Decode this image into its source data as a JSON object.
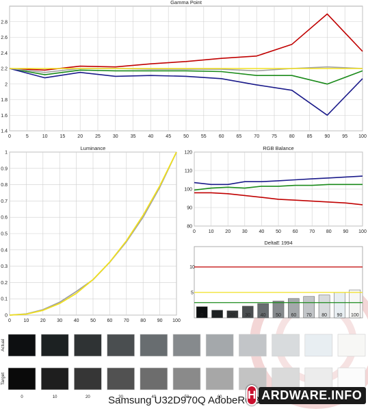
{
  "caption": "Samsung U32D970Q AdobeRGB",
  "logo": {
    "badge": "H",
    "text": "ARDWARE.INFO"
  },
  "colors": {
    "red": "#c00000",
    "green": "#1a8a1a",
    "blue": "#1a1a8a",
    "gray": "#a0a0a0",
    "yellow": "#f0e020"
  },
  "chart_data": [
    {
      "type": "line",
      "title": "Gamma Point",
      "x": [
        0,
        10,
        20,
        30,
        40,
        50,
        60,
        70,
        80,
        90,
        100
      ],
      "xticks": [
        0,
        5,
        10,
        15,
        20,
        25,
        30,
        35,
        40,
        45,
        50,
        55,
        60,
        65,
        70,
        75,
        80,
        85,
        90,
        95,
        100
      ],
      "xlim": [
        0,
        100
      ],
      "ylim": [
        1.4,
        3.0
      ],
      "yticks": [
        1.4,
        1.6,
        1.8,
        2,
        2.2,
        2.4,
        2.6,
        2.8
      ],
      "grid": true,
      "series": [
        {
          "color": "red",
          "values": [
            2.2,
            2.18,
            2.23,
            2.22,
            2.26,
            2.29,
            2.33,
            2.36,
            2.51,
            2.9,
            2.42
          ]
        },
        {
          "color": "green",
          "values": [
            2.2,
            2.12,
            2.18,
            2.17,
            2.17,
            2.17,
            2.16,
            2.11,
            2.11,
            2.0,
            2.17
          ]
        },
        {
          "color": "blue",
          "values": [
            2.2,
            2.08,
            2.15,
            2.1,
            2.11,
            2.1,
            2.07,
            1.99,
            1.92,
            1.6,
            2.07
          ]
        },
        {
          "color": "gray",
          "values": [
            2.2,
            2.15,
            2.2,
            2.2,
            2.19,
            2.19,
            2.19,
            2.17,
            2.2,
            2.22,
            2.2
          ]
        },
        {
          "color": "yellow",
          "values": [
            2.2,
            2.2,
            2.2,
            2.2,
            2.2,
            2.2,
            2.2,
            2.2,
            2.2,
            2.2,
            2.2
          ]
        }
      ]
    },
    {
      "type": "line",
      "title": "Luminance",
      "x": [
        0,
        10,
        20,
        30,
        40,
        50,
        60,
        70,
        80,
        90,
        100
      ],
      "xlim": [
        0,
        100
      ],
      "ylim": [
        0,
        1
      ],
      "yticks": [
        0,
        0.1,
        0.2,
        0.3,
        0.4,
        0.5,
        0.6,
        0.7,
        0.8,
        0.9,
        1
      ],
      "grid": true,
      "series": [
        {
          "color": "gray",
          "values": [
            0,
            0.007,
            0.033,
            0.079,
            0.145,
            0.217,
            0.324,
            0.45,
            0.601,
            0.784,
            1
          ]
        },
        {
          "color": "yellow",
          "values": [
            0,
            0.006,
            0.029,
            0.071,
            0.133,
            0.218,
            0.325,
            0.456,
            0.612,
            0.793,
            1
          ]
        }
      ]
    },
    {
      "type": "line",
      "title": "RGB Balance",
      "x": [
        0,
        10,
        20,
        30,
        40,
        50,
        60,
        70,
        80,
        90,
        100
      ],
      "xlim": [
        0,
        100
      ],
      "ylim": [
        80,
        120
      ],
      "yticks": [
        80,
        90,
        100,
        110,
        120
      ],
      "grid": true,
      "series": [
        {
          "color": "red",
          "values": [
            98,
            98,
            97.5,
            96.5,
            95.5,
            94.5,
            94,
            93.5,
            93,
            92.5,
            91.5
          ]
        },
        {
          "color": "green",
          "values": [
            99.5,
            100.5,
            101,
            100.5,
            101.5,
            101.5,
            102,
            102,
            102.5,
            102.5,
            102.5
          ]
        },
        {
          "color": "blue",
          "values": [
            103.5,
            102.5,
            102.5,
            104,
            104,
            104.5,
            105,
            105.5,
            106,
            106.5,
            107
          ]
        }
      ]
    },
    {
      "type": "bar",
      "title": "DeltaE 1994",
      "categories": [
        "0",
        "10",
        "20",
        "30",
        "40",
        "50",
        "60",
        "70",
        "80",
        "90",
        "100"
      ],
      "values": [
        2.2,
        1.5,
        1.4,
        2.3,
        2.8,
        3.3,
        3.8,
        4.2,
        4.5,
        5.0,
        5.5
      ],
      "ylim": [
        0,
        14
      ],
      "reference_lines": [
        {
          "value": 10,
          "color": "red"
        },
        {
          "value": 5,
          "color": "yellow"
        },
        {
          "value": 3,
          "color": "green"
        }
      ]
    },
    {
      "type": "table",
      "row_labels": [
        "Actual",
        "Target"
      ],
      "columns": [
        "0",
        "10",
        "20",
        "30",
        "40",
        "50",
        "60",
        "70",
        "80",
        "90",
        "100"
      ],
      "actual_colors": [
        "#0d0f11",
        "#1c2122",
        "#2f3334",
        "#4a4e50",
        "#686d70",
        "#868a8d",
        "#a4a8ab",
        "#c2c5c8",
        "#d8dbdd",
        "#e8eef2",
        "#f7f7f5"
      ],
      "target_colors": [
        "#0a0a0a",
        "#1e1e1e",
        "#363636",
        "#515151",
        "#6d6d6d",
        "#8a8a8a",
        "#a7a7a7",
        "#c3c3c3",
        "#dadada",
        "#ececec",
        "#fbfbfb"
      ]
    }
  ]
}
